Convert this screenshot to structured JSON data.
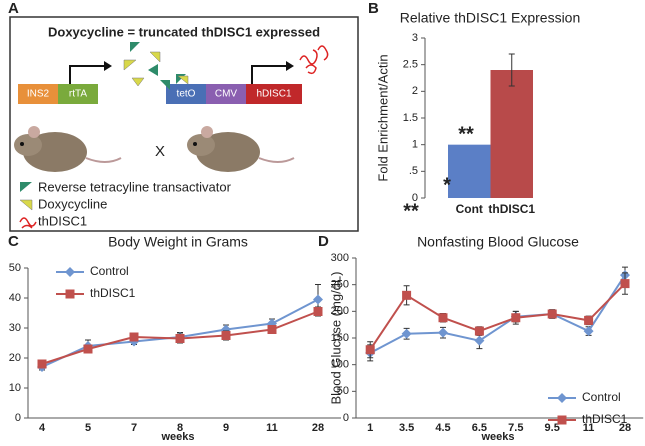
{
  "diagram": {
    "panel_label": "A",
    "title": "Doxycycline = truncated thDISC1 expressed",
    "construct1": [
      "INS2",
      "rtTA"
    ],
    "construct2": [
      "tetO",
      "CMV",
      "hDISC1"
    ],
    "cross": "X",
    "legend": [
      "Reverse tetracyline transactivator",
      "Doxycycline",
      "thDISC1"
    ]
  },
  "chart_data": [
    {
      "type": "bar",
      "panel_label": "B",
      "title": "Relative thDISC1 Expression",
      "ylabel": "Fold Enrichment/Actin",
      "categories": [
        "Cont",
        "thDISC1"
      ],
      "values": [
        1,
        2.4
      ],
      "errors": [
        null,
        0.3
      ],
      "colors": [
        "#5b7fc6",
        "#b84a4a"
      ],
      "ylim": [
        0,
        3
      ],
      "yticks": [
        0,
        {
          "value": 0.5,
          "label": ".5"
        },
        1,
        1.5,
        2,
        2.5,
        3
      ],
      "annotations": [
        "**"
      ]
    },
    {
      "type": "line",
      "panel_label": "C",
      "title": "Body Weight in Grams",
      "xlabel": "weeks",
      "categories": [
        "4",
        "5",
        "7",
        "8",
        "9",
        "11",
        "28"
      ],
      "series": [
        {
          "name": "Control",
          "color": "#6f95d0",
          "marker": "diamond",
          "values": [
            17,
            24,
            25.5,
            27,
            29.5,
            31.5,
            39.5
          ],
          "errors": [
            1,
            2,
            1,
            1.5,
            1.5,
            1.5,
            5
          ]
        },
        {
          "name": "thDISC1",
          "color": "#c0504d",
          "marker": "square",
          "values": [
            18,
            23,
            27,
            26.5,
            27.5,
            29.5,
            35.5
          ],
          "errors": [
            1,
            1,
            1,
            1.5,
            1.5,
            1,
            1.5
          ]
        }
      ],
      "ylim": [
        0,
        50
      ],
      "yticks": [
        0,
        10,
        20,
        30,
        40,
        50
      ],
      "legend": "top-left",
      "annotations": []
    },
    {
      "type": "line",
      "panel_label": "D",
      "title": "Nonfasting Blood Glucose",
      "xlabel": "weeks",
      "ylabel": "Blood Glucose (mg/dL)",
      "categories": [
        "1",
        "3.5",
        "4.5",
        "6.5",
        "7.5",
        "9.5",
        "11",
        "28"
      ],
      "series": [
        {
          "name": "Control",
          "color": "#6f95d0",
          "marker": "diamond",
          "values": [
            122,
            158,
            160,
            145,
            190,
            195,
            163,
            268
          ],
          "errors": [
            15,
            10,
            10,
            15,
            10,
            8,
            8,
            15
          ]
        },
        {
          "name": "thDISC1",
          "color": "#c0504d",
          "marker": "square",
          "values": [
            128,
            230,
            188,
            163,
            188,
            195,
            183,
            252
          ],
          "errors": [
            15,
            18,
            8,
            8,
            12,
            8,
            8,
            20
          ]
        }
      ],
      "ylim": [
        0,
        300
      ],
      "yticks": [
        0,
        50,
        100,
        150,
        200,
        250,
        300
      ],
      "legend": "bottom-right",
      "annotations": [
        "**",
        "*"
      ]
    }
  ]
}
